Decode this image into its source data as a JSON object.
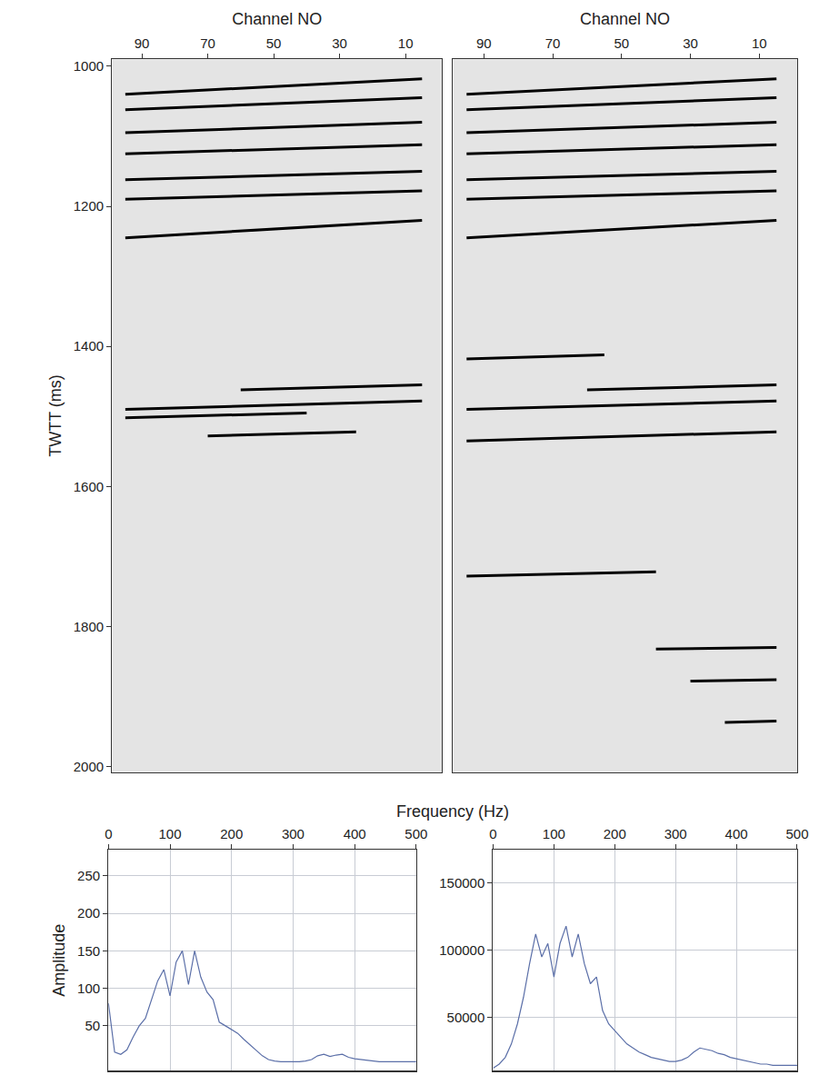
{
  "chart_data": [
    {
      "type": "line",
      "xlabel": "Channel NO",
      "ylabel": "TWTT (ms)",
      "xlim": [
        99,
        -1
      ],
      "xticks": [
        90,
        70,
        50,
        30,
        10
      ],
      "ylim": [
        2008,
        990
      ],
      "yticks": [
        1000,
        1200,
        1400,
        1600,
        1800,
        2000
      ],
      "color": "#000000",
      "series": [
        {
          "x": [
            95,
            5
          ],
          "values": [
            1040,
            1018
          ]
        },
        {
          "x": [
            95,
            5
          ],
          "values": [
            1062,
            1045
          ]
        },
        {
          "x": [
            95,
            5
          ],
          "values": [
            1095,
            1080
          ]
        },
        {
          "x": [
            95,
            5
          ],
          "values": [
            1125,
            1112
          ]
        },
        {
          "x": [
            95,
            5
          ],
          "values": [
            1162,
            1150
          ]
        },
        {
          "x": [
            95,
            5
          ],
          "values": [
            1190,
            1178
          ]
        },
        {
          "x": [
            95,
            5
          ],
          "values": [
            1245,
            1220
          ]
        },
        {
          "x": [
            60,
            5
          ],
          "values": [
            1462,
            1455
          ]
        },
        {
          "x": [
            95,
            5
          ],
          "values": [
            1490,
            1478
          ]
        },
        {
          "x": [
            95,
            40
          ],
          "values": [
            1502,
            1495
          ]
        },
        {
          "x": [
            70,
            25
          ],
          "values": [
            1528,
            1522
          ]
        }
      ]
    },
    {
      "type": "line",
      "xlabel": "Channel NO",
      "tick_labels": "x",
      "xlim": [
        99,
        -1
      ],
      "xticks": [
        90,
        70,
        50,
        30,
        10
      ],
      "ylim": [
        2008,
        990
      ],
      "color": "#000000",
      "series": [
        {
          "x": [
            95,
            5
          ],
          "values": [
            1040,
            1018
          ]
        },
        {
          "x": [
            95,
            5
          ],
          "values": [
            1062,
            1045
          ]
        },
        {
          "x": [
            95,
            5
          ],
          "values": [
            1095,
            1080
          ]
        },
        {
          "x": [
            95,
            5
          ],
          "values": [
            1125,
            1112
          ]
        },
        {
          "x": [
            95,
            5
          ],
          "values": [
            1162,
            1150
          ]
        },
        {
          "x": [
            95,
            5
          ],
          "values": [
            1190,
            1178
          ]
        },
        {
          "x": [
            95,
            5
          ],
          "values": [
            1245,
            1220
          ]
        },
        {
          "x": [
            95,
            55
          ],
          "values": [
            1418,
            1412
          ]
        },
        {
          "x": [
            60,
            5
          ],
          "values": [
            1462,
            1455
          ]
        },
        {
          "x": [
            95,
            5
          ],
          "values": [
            1490,
            1478
          ]
        },
        {
          "x": [
            95,
            5
          ],
          "values": [
            1535,
            1522
          ]
        },
        {
          "x": [
            95,
            40
          ],
          "values": [
            1728,
            1722
          ]
        },
        {
          "x": [
            40,
            5
          ],
          "values": [
            1832,
            1830
          ]
        },
        {
          "x": [
            30,
            5
          ],
          "values": [
            1878,
            1876
          ]
        },
        {
          "x": [
            20,
            5
          ],
          "values": [
            1937,
            1935
          ]
        }
      ]
    },
    {
      "type": "line",
      "xlabel": "Frequency (Hz)",
      "ylabel": "Amplitude",
      "xlim": [
        0,
        500
      ],
      "xticks": [
        0,
        100,
        200,
        300,
        400,
        500
      ],
      "ylim": [
        -10,
        285
      ],
      "yticks": [
        50,
        100,
        150,
        200,
        250
      ],
      "grid": true,
      "color": "#5b6fa8",
      "x": [
        0,
        10,
        20,
        30,
        40,
        50,
        60,
        70,
        80,
        90,
        100,
        110,
        120,
        130,
        140,
        150,
        160,
        170,
        180,
        190,
        200,
        210,
        220,
        230,
        240,
        250,
        260,
        270,
        280,
        290,
        300,
        310,
        320,
        330,
        340,
        350,
        360,
        370,
        380,
        390,
        400,
        410,
        420,
        430,
        440,
        450,
        460,
        470,
        480,
        490,
        500
      ],
      "values": [
        80,
        15,
        12,
        18,
        35,
        50,
        60,
        85,
        110,
        125,
        90,
        135,
        150,
        105,
        150,
        115,
        95,
        85,
        55,
        50,
        45,
        40,
        32,
        25,
        18,
        10,
        5,
        3,
        2,
        2,
        2,
        2,
        3,
        5,
        10,
        12,
        9,
        11,
        12,
        8,
        6,
        5,
        4,
        3,
        2,
        2,
        2,
        2,
        2,
        2,
        2
      ]
    },
    {
      "type": "line",
      "xlim": [
        0,
        500
      ],
      "xticks": [
        0,
        100,
        200,
        300,
        400,
        500
      ],
      "ylim": [
        10000,
        175000
      ],
      "yticks": [
        50000,
        100000,
        150000
      ],
      "grid": true,
      "color": "#5b6fa8",
      "x": [
        0,
        10,
        20,
        30,
        40,
        50,
        60,
        70,
        80,
        90,
        100,
        110,
        120,
        130,
        140,
        150,
        160,
        170,
        180,
        190,
        200,
        210,
        220,
        230,
        240,
        250,
        260,
        270,
        280,
        290,
        300,
        310,
        320,
        330,
        340,
        350,
        360,
        370,
        380,
        390,
        400,
        410,
        420,
        430,
        440,
        450,
        460,
        470,
        480,
        490,
        500
      ],
      "values": [
        12000,
        15000,
        20000,
        30000,
        45000,
        65000,
        90000,
        112000,
        95000,
        105000,
        80000,
        105000,
        118000,
        95000,
        112000,
        90000,
        75000,
        80000,
        55000,
        45000,
        40000,
        35000,
        30000,
        27000,
        24000,
        22000,
        20000,
        19000,
        18000,
        17000,
        17000,
        18000,
        20000,
        24000,
        27000,
        26000,
        25000,
        23000,
        22000,
        20000,
        19000,
        18000,
        17000,
        16000,
        15000,
        15000,
        14000,
        14000,
        14000,
        14000,
        14000
      ]
    }
  ]
}
